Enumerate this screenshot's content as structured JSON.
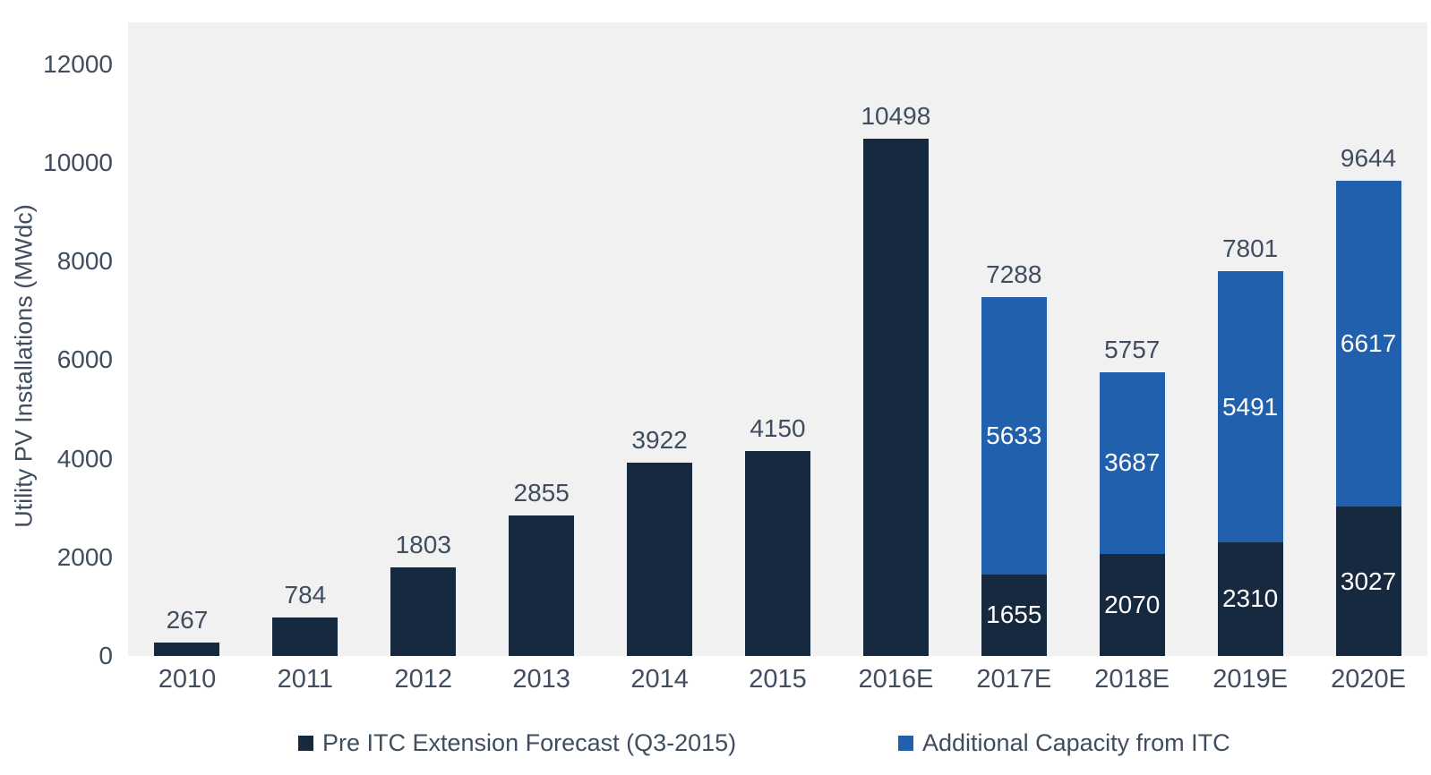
{
  "chart_data": {
    "type": "bar",
    "stacked": true,
    "title": "",
    "ylabel": "Utility PV Installations (MWdc)",
    "xlabel": "",
    "categories": [
      "2010",
      "2011",
      "2012",
      "2013",
      "2014",
      "2015",
      "2016E",
      "2017E",
      "2018E",
      "2019E",
      "2020E"
    ],
    "series": [
      {
        "name": "Pre ITC Extension Forecast (Q3-2015)",
        "color": "#16293F",
        "values": [
          267,
          784,
          1803,
          2855,
          3922,
          4150,
          10498,
          1655,
          2070,
          2310,
          3027
        ]
      },
      {
        "name": "Additional Capacity from ITC",
        "color": "#2160AC",
        "values": [
          0,
          0,
          0,
          0,
          0,
          0,
          0,
          5633,
          3687,
          5491,
          6617
        ]
      }
    ],
    "totals": [
      267,
      784,
      1803,
      2855,
      3922,
      4150,
      10498,
      7288,
      5757,
      7801,
      9644
    ],
    "y_ticks": [
      0,
      2000,
      4000,
      6000,
      8000,
      10000,
      12000
    ],
    "ylim": [
      0,
      12853
    ],
    "grid": false,
    "legend_position": "bottom",
    "plot_bg": "#F1F1F1",
    "page_bg": "#FFFFFF",
    "label_color": "#3F4D5E",
    "inside_label_color": "#FFFFFF"
  }
}
